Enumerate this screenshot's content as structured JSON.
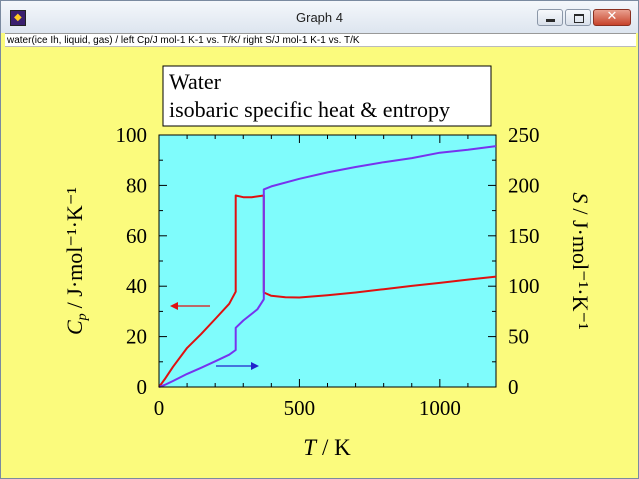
{
  "window": {
    "title": "Graph 4",
    "description": "water(ice Ih, liquid, gas) / left Cp/J mol-1 K-1 vs. T/K/ right  S/J mol-1 K-1 vs. T/K",
    "close_glyph": "✕"
  },
  "colors": {
    "background": "#fbfb7d",
    "plot_area": "#7ffcfc",
    "cp_line": "#e01010",
    "s_line": "#7733ee",
    "s_arrow": "#2222cc"
  },
  "chart_data": {
    "type": "line",
    "title_lines": [
      "Water",
      "isobaric specific heat & entropy"
    ],
    "x_axis": {
      "symbol": "T",
      "unit": "K",
      "range": [
        0,
        1200
      ],
      "ticks": [
        0,
        500,
        1000
      ]
    },
    "y_left": {
      "symbol": "C",
      "subscript": "p",
      "unit": "J·mol⁻¹·K⁻¹",
      "range": [
        0,
        100
      ],
      "ticks": [
        0,
        20,
        40,
        60,
        80,
        100
      ]
    },
    "y_right": {
      "symbol": "S",
      "unit": "J·mol⁻¹·K⁻¹",
      "range": [
        0,
        250
      ],
      "ticks": [
        0,
        50,
        100,
        150,
        200,
        250
      ]
    },
    "series": [
      {
        "axis": "left",
        "points": [
          [
            0,
            0
          ],
          [
            20,
            3
          ],
          [
            50,
            8
          ],
          [
            100,
            15.5
          ],
          [
            150,
            21
          ],
          [
            200,
            27
          ],
          [
            250,
            33
          ],
          [
            273.15,
            37.8
          ],
          [
            273.15,
            76
          ],
          [
            300,
            75.3
          ],
          [
            330,
            75.3
          ],
          [
            373.15,
            76
          ],
          [
            373.15,
            37.5
          ],
          [
            400,
            36.2
          ],
          [
            450,
            35.6
          ],
          [
            500,
            35.5
          ],
          [
            600,
            36.4
          ],
          [
            700,
            37.5
          ],
          [
            800,
            38.8
          ],
          [
            900,
            40.1
          ],
          [
            1000,
            41.3
          ],
          [
            1100,
            42.6
          ],
          [
            1200,
            43.8
          ]
        ]
      },
      {
        "axis": "right",
        "points": [
          [
            0,
            0
          ],
          [
            20,
            2
          ],
          [
            50,
            6
          ],
          [
            100,
            13
          ],
          [
            150,
            19
          ],
          [
            200,
            25.5
          ],
          [
            250,
            32
          ],
          [
            273.15,
            36.7
          ],
          [
            273.15,
            58.7
          ],
          [
            300,
            66
          ],
          [
            350,
            77
          ],
          [
            373.15,
            87
          ],
          [
            373.15,
            196
          ],
          [
            400,
            199
          ],
          [
            500,
            206.5
          ],
          [
            600,
            212.9
          ],
          [
            700,
            218.3
          ],
          [
            800,
            223
          ],
          [
            900,
            227.1
          ],
          [
            1000,
            232.4
          ],
          [
            1100,
            235.3
          ],
          [
            1200,
            239
          ]
        ]
      }
    ]
  }
}
